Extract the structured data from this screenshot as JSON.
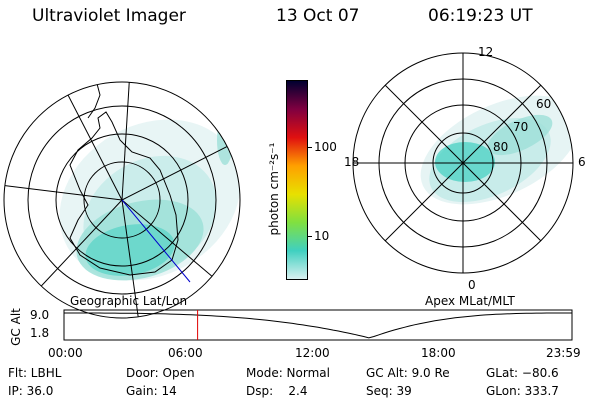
{
  "header": {
    "instrument": "Ultraviolet Imager",
    "date": "13 Oct 07",
    "time": "06:19:23 UT"
  },
  "left_panel": {
    "caption": "Geographic Lat/Lon"
  },
  "right_panel": {
    "caption": "Apex MLat/MLT",
    "mlt_labels": {
      "top": "12",
      "left": "18",
      "right": "6",
      "bottom": "0"
    },
    "mlat_labels": [
      "60",
      "70",
      "80"
    ]
  },
  "colorbar": {
    "unit": "photon cm⁻²s⁻¹",
    "ticks": [
      "100",
      "10"
    ],
    "scale": "log",
    "colors": [
      "#d8f0f0",
      "#40d0c0",
      "#80e040",
      "#e8e000",
      "#ffa000",
      "#e01010",
      "#800040",
      "#000030"
    ]
  },
  "timeline": {
    "ylabel": "GC Alt",
    "yticks": [
      "9.0",
      "1.8"
    ],
    "xticks": [
      "00:00",
      "06:00",
      "12:00",
      "18:00",
      "23:59"
    ],
    "marker_fraction": 0.263,
    "marker_color": "#e00000",
    "perigee_fraction": 0.602
  },
  "info": {
    "filter": "Flt: LBHL",
    "ip": "IP: 36.0",
    "door": "Door: Open",
    "gain": "Gain: 14",
    "mode": "Mode: Normal",
    "dsp": "Dsp:    2.4",
    "gc_alt": "GC Alt: 9.0 Re",
    "seq": "Seq: 39",
    "glat": "GLat: −80.6",
    "glon": "GLon: 333.7"
  }
}
